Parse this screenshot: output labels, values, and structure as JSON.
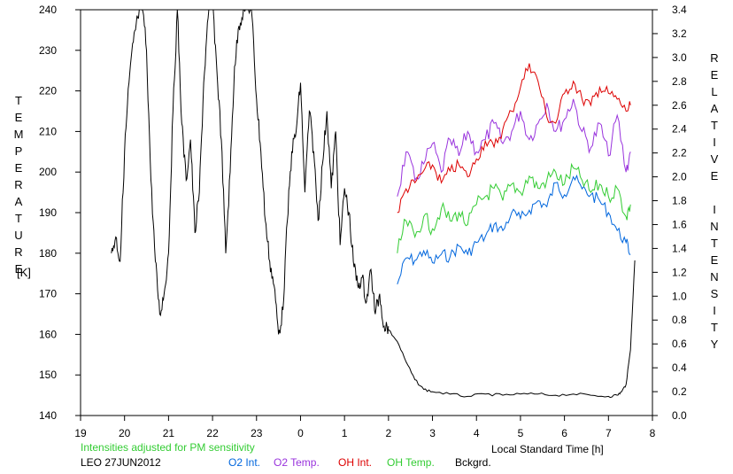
{
  "chart_data": {
    "type": "line",
    "xlabel": "Local Standard Time [h]",
    "ylabel_left": "TEMPERATURE",
    "ylabel_left_unit": "[K]",
    "ylabel_right": "RELATIVE INTENSITY",
    "note": "Intensities adjusted for PM sensitivity",
    "station_date": "LEO 27JUN2012",
    "x_ticks": [
      "19",
      "20",
      "21",
      "22",
      "23",
      "0",
      "1",
      "2",
      "3",
      "4",
      "5",
      "6",
      "7",
      "8"
    ],
    "x_range": [
      19,
      32
    ],
    "y_left_ticks": [
      "140",
      "150",
      "160",
      "170",
      "180",
      "190",
      "200",
      "210",
      "220",
      "230",
      "240"
    ],
    "y_left_range": [
      140,
      240
    ],
    "y_right_ticks": [
      "0.0",
      "0.2",
      "0.4",
      "0.6",
      "0.8",
      "1.0",
      "1.2",
      "1.4",
      "1.6",
      "1.8",
      "2.0",
      "2.2",
      "2.4",
      "2.6",
      "2.8",
      "3.0",
      "3.2",
      "3.4"
    ],
    "y_right_range": [
      0.0,
      3.4
    ],
    "grid": false,
    "legend_position": "bottom",
    "series": [
      {
        "name": "O2 Int.",
        "axis": "right",
        "color": "#0066dd",
        "x": [
          26.2,
          26.4,
          26.6,
          26.8,
          27.0,
          27.2,
          27.4,
          27.6,
          27.8,
          28.0,
          28.2,
          28.4,
          28.6,
          28.8,
          29.0,
          29.2,
          29.4,
          29.6,
          29.8,
          30.0,
          30.2,
          30.4,
          30.6,
          30.8,
          31.0,
          31.2,
          31.4,
          31.5
        ],
        "values": [
          1.1,
          1.32,
          1.3,
          1.38,
          1.28,
          1.35,
          1.33,
          1.42,
          1.35,
          1.45,
          1.5,
          1.6,
          1.55,
          1.7,
          1.65,
          1.72,
          1.8,
          1.75,
          1.95,
          1.85,
          2.0,
          1.9,
          1.85,
          1.8,
          1.7,
          1.55,
          1.45,
          1.35
        ]
      },
      {
        "name": "O2 Temp.",
        "axis": "left",
        "color": "#9933dd",
        "x": [
          26.2,
          26.4,
          26.6,
          26.8,
          27.0,
          27.2,
          27.4,
          27.6,
          27.8,
          28.0,
          28.2,
          28.4,
          28.6,
          28.8,
          29.0,
          29.2,
          29.4,
          29.6,
          29.8,
          30.0,
          30.2,
          30.4,
          30.6,
          30.8,
          31.0,
          31.2,
          31.4,
          31.5
        ],
        "values": [
          194,
          205,
          198,
          202,
          207,
          200,
          208,
          204,
          210,
          205,
          208,
          212,
          207,
          210,
          215,
          208,
          212,
          217,
          210,
          213,
          218,
          210,
          206,
          212,
          204,
          214,
          200,
          205
        ]
      },
      {
        "name": "OH Int.",
        "axis": "right",
        "color": "#dd0000",
        "x": [
          26.2,
          26.4,
          26.6,
          26.8,
          27.0,
          27.2,
          27.4,
          27.6,
          27.8,
          28.0,
          28.2,
          28.4,
          28.6,
          28.8,
          29.0,
          29.2,
          29.4,
          29.6,
          29.8,
          30.0,
          30.2,
          30.4,
          30.6,
          30.8,
          31.0,
          31.2,
          31.4,
          31.5
        ],
        "values": [
          1.7,
          1.9,
          1.95,
          2.05,
          2.1,
          1.95,
          2.05,
          2.1,
          2.0,
          2.15,
          2.3,
          2.25,
          2.4,
          2.55,
          2.75,
          2.95,
          2.8,
          2.5,
          2.45,
          2.7,
          2.8,
          2.65,
          2.6,
          2.75,
          2.7,
          2.65,
          2.55,
          2.6
        ]
      },
      {
        "name": "OH Temp.",
        "axis": "left",
        "color": "#33cc33",
        "x": [
          26.2,
          26.4,
          26.6,
          26.8,
          27.0,
          27.2,
          27.4,
          27.6,
          27.8,
          28.0,
          28.2,
          28.4,
          28.6,
          28.8,
          29.0,
          29.2,
          29.4,
          29.6,
          29.8,
          30.0,
          30.2,
          30.4,
          30.6,
          30.8,
          31.0,
          31.2,
          31.4,
          31.5
        ],
        "values": [
          180,
          188,
          184,
          189,
          186,
          191,
          188,
          190,
          187,
          192,
          194,
          196,
          193,
          197,
          195,
          199,
          196,
          198,
          200,
          197,
          201,
          198,
          195,
          197,
          194,
          196,
          189,
          192
        ]
      },
      {
        "name": "Bckgrd.",
        "axis": "right",
        "color": "#000000",
        "x": [
          26.0,
          26.2,
          26.4,
          26.6,
          26.8,
          27.0,
          27.4,
          27.8,
          28.2,
          28.6,
          29.0,
          29.4,
          29.8,
          30.2,
          30.6,
          31.0,
          31.2,
          31.3,
          31.4,
          31.5,
          31.6
        ],
        "values": [
          0.72,
          0.62,
          0.45,
          0.3,
          0.22,
          0.2,
          0.18,
          0.16,
          0.18,
          0.17,
          0.18,
          0.18,
          0.17,
          0.18,
          0.17,
          0.16,
          0.17,
          0.2,
          0.26,
          0.55,
          1.3
        ]
      },
      {
        "name": "Temperature",
        "axis": "left",
        "color": "#000000",
        "x": [
          19.7,
          19.8,
          19.9,
          20.0,
          20.1,
          20.2,
          20.3,
          20.4,
          20.5,
          20.6,
          20.7,
          20.8,
          20.9,
          21.0,
          21.1,
          21.2,
          21.3,
          21.4,
          21.5,
          21.6,
          21.7,
          21.8,
          21.9,
          22.0,
          22.1,
          22.2,
          22.3,
          22.4,
          22.5,
          22.6,
          22.7,
          22.8,
          22.9,
          23.0,
          23.1,
          23.2,
          23.3,
          23.4,
          23.5,
          23.6,
          23.7,
          23.8,
          23.9,
          24.0,
          24.1,
          24.2,
          24.3,
          24.4,
          24.5,
          24.6,
          24.7,
          24.8,
          24.9,
          25.0,
          25.1,
          25.2,
          25.3,
          25.4,
          25.5,
          25.6,
          25.7,
          25.8,
          25.9,
          26.0
        ],
        "values": [
          180,
          184,
          178,
          205,
          222,
          232,
          238,
          242,
          230,
          198,
          178,
          165,
          170,
          180,
          215,
          240,
          212,
          198,
          208,
          185,
          195,
          222,
          238,
          242,
          225,
          208,
          180,
          200,
          226,
          236,
          240,
          242,
          238,
          218,
          205,
          188,
          178,
          172,
          160,
          166,
          188,
          205,
          210,
          222,
          195,
          215,
          205,
          188,
          202,
          215,
          196,
          210,
          182,
          196,
          190,
          178,
          172,
          174,
          168,
          176,
          165,
          170,
          162,
          162
        ]
      }
    ]
  },
  "legend": {
    "note_color": "#33cc33",
    "entries": [
      {
        "label": "O2 Int.",
        "color": "#0066dd"
      },
      {
        "label": "O2 Temp.",
        "color": "#9933dd"
      },
      {
        "label": "OH Int.",
        "color": "#dd0000"
      },
      {
        "label": "OH Temp.",
        "color": "#33cc33"
      },
      {
        "label": "Bckgrd.",
        "color": "#000000"
      }
    ]
  }
}
